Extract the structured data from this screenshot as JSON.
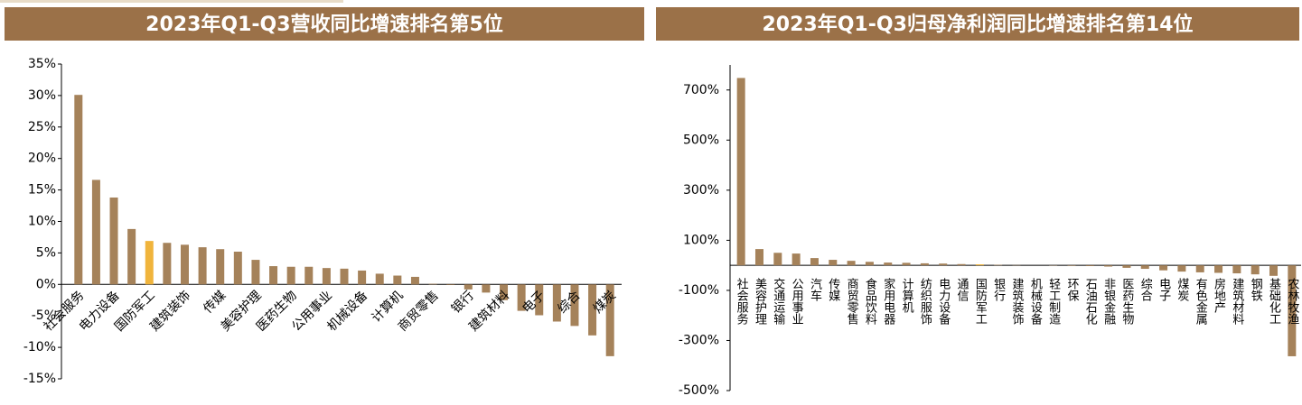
{
  "chart_data": [
    {
      "type": "bar",
      "title": "2023年Q1-Q3营收同比增速排名第5位",
      "categories": [
        "社会服务",
        null,
        "电力设备",
        null,
        "国防军工",
        null,
        "建筑装饰",
        null,
        "传媒",
        null,
        "美容护理",
        null,
        "医药生物",
        null,
        "公用事业",
        null,
        "机械设备",
        null,
        "计算机",
        null,
        "商贸零售",
        null,
        "银行",
        null,
        "建筑材料",
        null,
        "电子",
        null,
        "综合",
        null,
        "煤炭"
      ],
      "values": [
        30.1,
        16.6,
        13.8,
        8.8,
        6.9,
        6.6,
        6.3,
        5.9,
        5.6,
        5.2,
        3.9,
        2.9,
        2.8,
        2.8,
        2.6,
        2.5,
        2.2,
        1.7,
        1.4,
        1.2,
        0.1,
        -0.1,
        -0.8,
        -1.3,
        -2.5,
        -4.2,
        -4.9,
        -5.9,
        -6.6,
        -8.1,
        -11.4
      ],
      "colors": [
        "#a5825a",
        "#a5825a",
        "#a5825a",
        "#a5825a",
        "#f0b43c",
        "#a5825a",
        "#a5825a",
        "#a5825a",
        "#a5825a",
        "#a5825a",
        "#a5825a",
        "#a5825a",
        "#a5825a",
        "#a5825a",
        "#a5825a",
        "#a5825a",
        "#a5825a",
        "#a5825a",
        "#a5825a",
        "#a5825a",
        "#a5825a",
        "#a5825a",
        "#a5825a",
        "#a5825a",
        "#a5825a",
        "#a5825a",
        "#a5825a",
        "#a5825a",
        "#a5825a",
        "#a5825a",
        "#a5825a"
      ],
      "ylim": [
        -15,
        35
      ],
      "yticks": [
        {
          "value": -15,
          "label": "-15%"
        },
        {
          "value": -10,
          "label": "-10%"
        },
        {
          "value": -5,
          "label": "-5%"
        },
        {
          "value": 0,
          "label": "0%"
        },
        {
          "value": 5,
          "label": "5%"
        },
        {
          "value": 10,
          "label": "10%"
        },
        {
          "value": 15,
          "label": "15%"
        },
        {
          "value": 20,
          "label": "20%"
        },
        {
          "value": 25,
          "label": "25%"
        },
        {
          "value": 30,
          "label": "30%"
        },
        {
          "value": 35,
          "label": "35%"
        }
      ],
      "grid": false
    },
    {
      "type": "bar",
      "title": "2023年Q1-Q3归母净利润同比增速排名第14位",
      "categories": [
        "社会服务",
        "美容护理",
        "交通运输",
        "公用事业",
        "汽车",
        "传媒",
        "商贸零售",
        "食品饮料",
        "家用电器",
        "计算机",
        "纺织服饰",
        "电力设备",
        "通信",
        "国防军工",
        "银行",
        "建筑装饰",
        "机械设备",
        "轻工制造",
        "环保",
        "石油石化",
        "非银金融",
        "医药生物",
        "综合",
        "电子",
        "煤炭",
        "有色金属",
        "房地产",
        "建筑材料",
        "钢铁",
        "基础化工",
        "农林牧渔"
      ],
      "values": [
        748,
        65,
        50,
        47,
        29,
        22,
        18,
        14,
        11,
        10,
        8,
        7,
        5,
        4,
        2,
        1,
        0,
        -1,
        -2,
        -3,
        -5,
        -10,
        -14,
        -20,
        -25,
        -28,
        -30,
        -32,
        -36,
        -42,
        -363
      ],
      "colors": [
        "#a5825a",
        "#a5825a",
        "#a5825a",
        "#a5825a",
        "#a5825a",
        "#a5825a",
        "#a5825a",
        "#a5825a",
        "#a5825a",
        "#a5825a",
        "#a5825a",
        "#a5825a",
        "#a5825a",
        "#f0b43c",
        "#a5825a",
        "#a5825a",
        "#a5825a",
        "#a5825a",
        "#a5825a",
        "#a5825a",
        "#a5825a",
        "#a5825a",
        "#a5825a",
        "#a5825a",
        "#a5825a",
        "#a5825a",
        "#a5825a",
        "#a5825a",
        "#a5825a",
        "#a5825a",
        "#a5825a"
      ],
      "ylim": [
        -500,
        800
      ],
      "yticks": [
        {
          "value": -500,
          "label": "-500%"
        },
        {
          "value": -300,
          "label": "-300%"
        },
        {
          "value": -100,
          "label": "-100%"
        },
        {
          "value": 100,
          "label": "100%"
        },
        {
          "value": 300,
          "label": "300%"
        },
        {
          "value": 500,
          "label": "500%"
        },
        {
          "value": 700,
          "label": "700%"
        }
      ],
      "grid": false
    }
  ]
}
